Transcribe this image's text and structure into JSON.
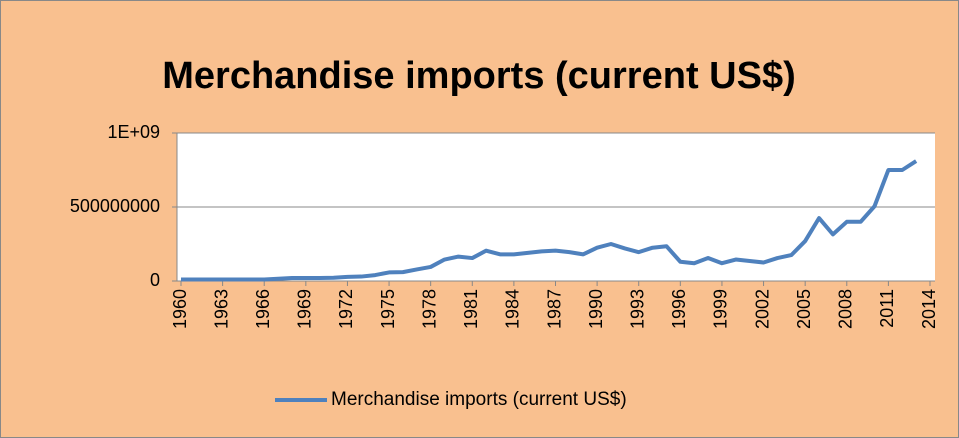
{
  "chart_data": {
    "type": "line",
    "title": "Merchandise imports (current US$)",
    "x": [
      1960,
      1961,
      1962,
      1963,
      1964,
      1965,
      1966,
      1967,
      1968,
      1969,
      1970,
      1971,
      1972,
      1973,
      1974,
      1975,
      1976,
      1977,
      1978,
      1979,
      1980,
      1981,
      1982,
      1983,
      1984,
      1985,
      1986,
      1987,
      1988,
      1989,
      1990,
      1991,
      1992,
      1993,
      1994,
      1995,
      1996,
      1997,
      1998,
      1999,
      2000,
      2001,
      2002,
      2003,
      2004,
      2005,
      2006,
      2007,
      2008,
      2009,
      2010,
      2011,
      2012,
      2013
    ],
    "series": [
      {
        "name": "Merchandise imports (current US$)",
        "color": "#4f81bd",
        "values": [
          10000000,
          10000000,
          10000000,
          10000000,
          10000000,
          10000000,
          10000000,
          15000000,
          20000000,
          20000000,
          20000000,
          22000000,
          28000000,
          30000000,
          40000000,
          58000000,
          60000000,
          78000000,
          95000000,
          145000000,
          165000000,
          155000000,
          205000000,
          180000000,
          180000000,
          190000000,
          200000000,
          205000000,
          195000000,
          180000000,
          225000000,
          250000000,
          220000000,
          195000000,
          225000000,
          235000000,
          130000000,
          120000000,
          155000000,
          120000000,
          145000000,
          135000000,
          125000000,
          155000000,
          175000000,
          270000000,
          425000000,
          315000000,
          400000000,
          400000000,
          505000000,
          750000000,
          750000000,
          810000000
        ]
      }
    ],
    "xlim": [
      1960,
      2014
    ],
    "xticks": [
      1960,
      1963,
      1966,
      1969,
      1972,
      1975,
      1978,
      1981,
      1984,
      1987,
      1990,
      1993,
      1996,
      1999,
      2002,
      2005,
      2008,
      2011,
      2014
    ],
    "ylim": [
      0,
      1000000000
    ],
    "yticks": [
      0,
      500000000,
      {
        "value": 1000000000,
        "label": "1E+09"
      }
    ],
    "grid": true,
    "legend": "bottom"
  }
}
